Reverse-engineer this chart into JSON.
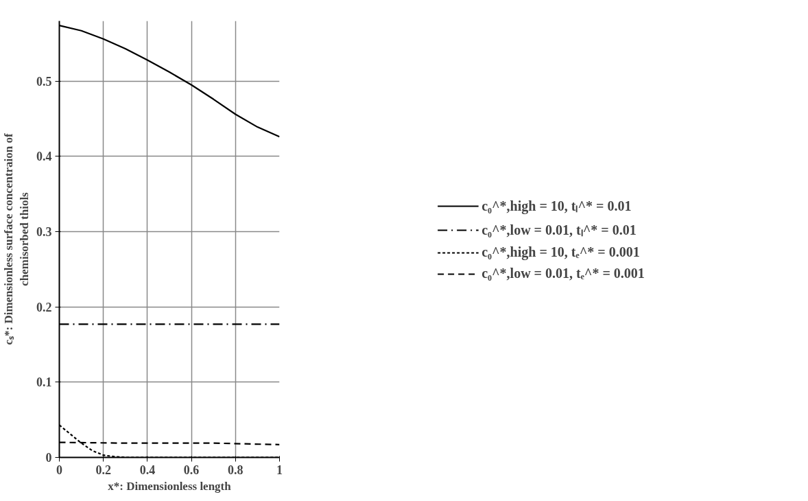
{
  "chart_data": {
    "type": "line",
    "xlabel": "x*: Dimensionless length",
    "ylabel": "cₛ*: Dimensionless surface concentraion of\nchemisorbed thiols",
    "xlim": [
      0,
      1
    ],
    "ylim": [
      0,
      0.58
    ],
    "xticks": [
      0,
      0.2,
      0.4,
      0.6,
      0.8,
      1
    ],
    "yticks": [
      0,
      0.1,
      0.2,
      0.3,
      0.4,
      0.5
    ],
    "grid": true,
    "legend": "right",
    "series": [
      {
        "name": "c₀^*,high = 10, tₗ^* = 0.01",
        "color": "#000000",
        "line_style": "solid",
        "x": [
          0,
          0.1,
          0.2,
          0.3,
          0.4,
          0.5,
          0.6,
          0.7,
          0.8,
          0.9,
          1
        ],
        "values": [
          0.574,
          0.567,
          0.556,
          0.543,
          0.528,
          0.512,
          0.495,
          0.476,
          0.456,
          0.439,
          0.426
        ]
      },
      {
        "name": "c₀^*,low = 0.01, tₗ^* = 0.01",
        "color": "#000000",
        "line_style": "dashdot",
        "x": [
          0,
          1
        ],
        "values": [
          0.177,
          0.177
        ]
      },
      {
        "name": "c₀^*,high = 10, tₑ^* = 0.001",
        "color": "#000000",
        "line_style": "dotted",
        "x": [
          0,
          0.05,
          0.1,
          0.15,
          0.2,
          0.25,
          0.3,
          0.4,
          0.6,
          0.8,
          1
        ],
        "values": [
          0.043,
          0.031,
          0.019,
          0.009,
          0.003,
          0.001,
          0,
          0,
          0,
          0,
          0
        ]
      },
      {
        "name": "c₀^*,low = 0.01, tₑ^* = 0.001",
        "color": "#000000",
        "line_style": "dashed",
        "x": [
          0,
          0.3,
          0.7,
          1
        ],
        "values": [
          0.02,
          0.019,
          0.019,
          0.017
        ]
      }
    ]
  }
}
